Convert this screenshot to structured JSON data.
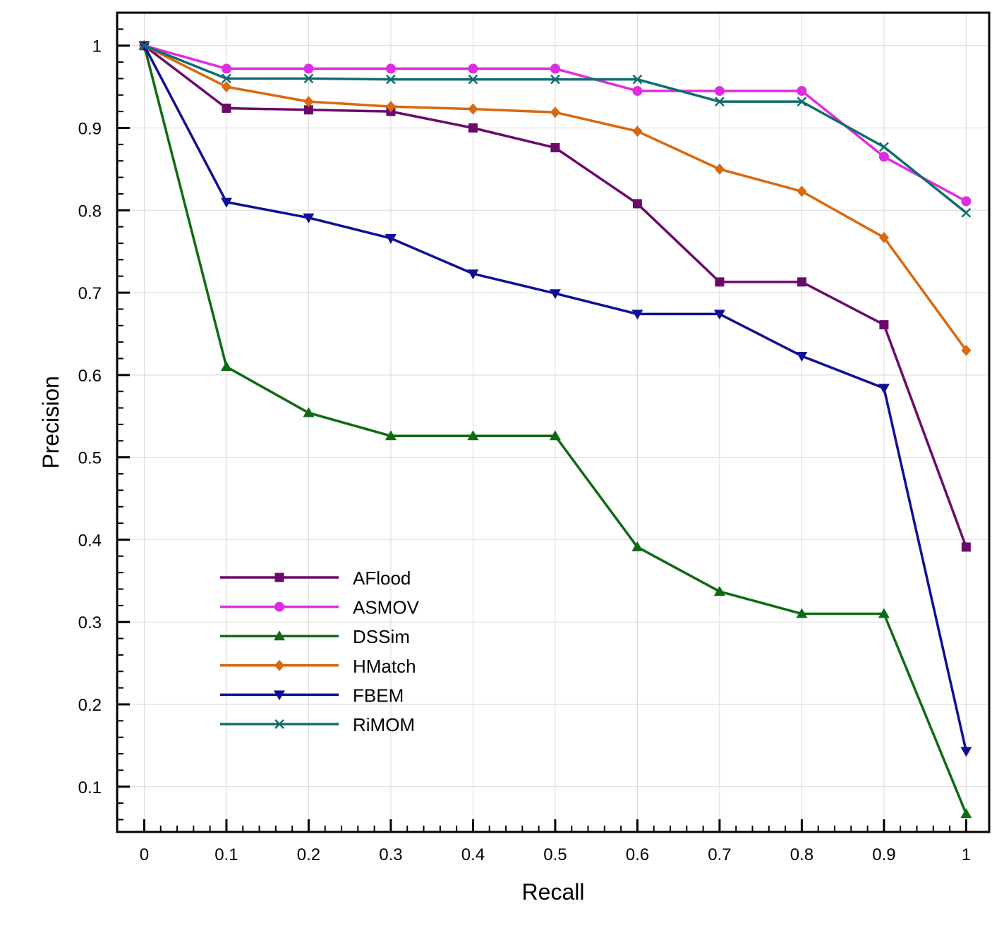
{
  "chart_data": {
    "type": "line",
    "title": "",
    "xlabel": "Recall",
    "ylabel": "Precision",
    "xlim": [
      -0.033,
      1.028
    ],
    "ylim": [
      0.045,
      1.04
    ],
    "grid": true,
    "legend_position": "lower-left",
    "x": [
      0,
      0.1,
      0.2,
      0.3,
      0.4,
      0.5,
      0.6,
      0.7,
      0.8,
      0.9,
      1
    ],
    "x_ticks": [
      {
        "value": 0,
        "label": "0"
      },
      {
        "value": 0.1,
        "label": "0.1"
      },
      {
        "value": 0.2,
        "label": "0.2"
      },
      {
        "value": 0.3,
        "label": "0.3"
      },
      {
        "value": 0.4,
        "label": "0.4"
      },
      {
        "value": 0.5,
        "label": "0.5"
      },
      {
        "value": 0.6,
        "label": "0.6"
      },
      {
        "value": 0.7,
        "label": "0.7"
      },
      {
        "value": 0.8,
        "label": "0.8"
      },
      {
        "value": 0.9,
        "label": "0.9"
      },
      {
        "value": 1,
        "label": "1"
      }
    ],
    "y_ticks": [
      {
        "value": 0.1,
        "label": "0.1"
      },
      {
        "value": 0.2,
        "label": "0.2"
      },
      {
        "value": 0.3,
        "label": "0.3"
      },
      {
        "value": 0.4,
        "label": "0.4"
      },
      {
        "value": 0.5,
        "label": "0.5"
      },
      {
        "value": 0.6,
        "label": "0.6"
      },
      {
        "value": 0.7,
        "label": "0.7"
      },
      {
        "value": 0.8,
        "label": "0.8"
      },
      {
        "value": 0.9,
        "label": "0.9"
      },
      {
        "value": 1,
        "label": "1"
      }
    ],
    "series": [
      {
        "name": "AFlood",
        "color": "#6b0a6b",
        "marker": "square",
        "values": [
          1.0,
          0.924,
          0.922,
          0.92,
          0.9,
          0.876,
          0.808,
          0.713,
          0.713,
          0.661,
          0.391
        ]
      },
      {
        "name": "ASMOV",
        "color": "#e02ce0",
        "marker": "circle",
        "values": [
          1.0,
          0.972,
          0.972,
          0.972,
          0.972,
          0.972,
          0.945,
          0.945,
          0.945,
          0.865,
          0.811
        ]
      },
      {
        "name": "DSSim",
        "color": "#0e6b12",
        "marker": "triangle-up",
        "values": [
          1.0,
          0.61,
          0.554,
          0.526,
          0.526,
          0.526,
          0.391,
          0.337,
          0.31,
          0.31,
          0.067
        ]
      },
      {
        "name": "HMatch",
        "color": "#d9680e",
        "marker": "diamond",
        "values": [
          1.0,
          0.95,
          0.932,
          0.926,
          0.923,
          0.919,
          0.896,
          0.85,
          0.823,
          0.767,
          0.63
        ]
      },
      {
        "name": "FBEM",
        "color": "#0f0f96",
        "marker": "triangle-down",
        "values": [
          1.0,
          0.81,
          0.791,
          0.766,
          0.723,
          0.699,
          0.674,
          0.674,
          0.623,
          0.584,
          0.143
        ]
      },
      {
        "name": "RiMOM",
        "color": "#0e6e6e",
        "marker": "x",
        "values": [
          1.0,
          0.96,
          0.96,
          0.959,
          0.959,
          0.959,
          0.959,
          0.932,
          0.932,
          0.877,
          0.797
        ]
      }
    ]
  }
}
